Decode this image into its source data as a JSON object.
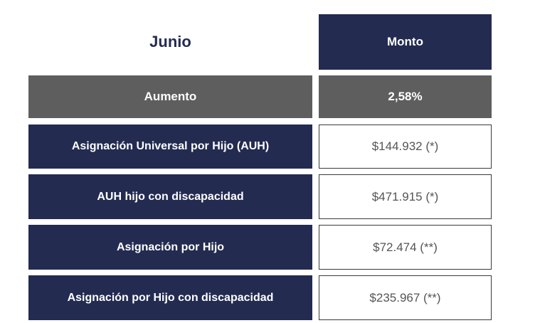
{
  "header": {
    "title": "Junio",
    "column_label": "Monto"
  },
  "increase": {
    "label": "Aumento",
    "value": "2,58%"
  },
  "rows": [
    {
      "label": "Asignación Universal por Hijo (AUH)",
      "value": "$144.932 (*)"
    },
    {
      "label": "AUH hijo con discapacidad",
      "value": "$471.915 (*)"
    },
    {
      "label": "Asignación por Hijo",
      "value": "$72.474 (**)"
    },
    {
      "label": "Asignación por Hijo con discapacidad",
      "value": "$235.967 (**)"
    }
  ],
  "colors": {
    "navy": "#232b51",
    "gray": "#5e5e5e",
    "value_text": "#555555"
  }
}
